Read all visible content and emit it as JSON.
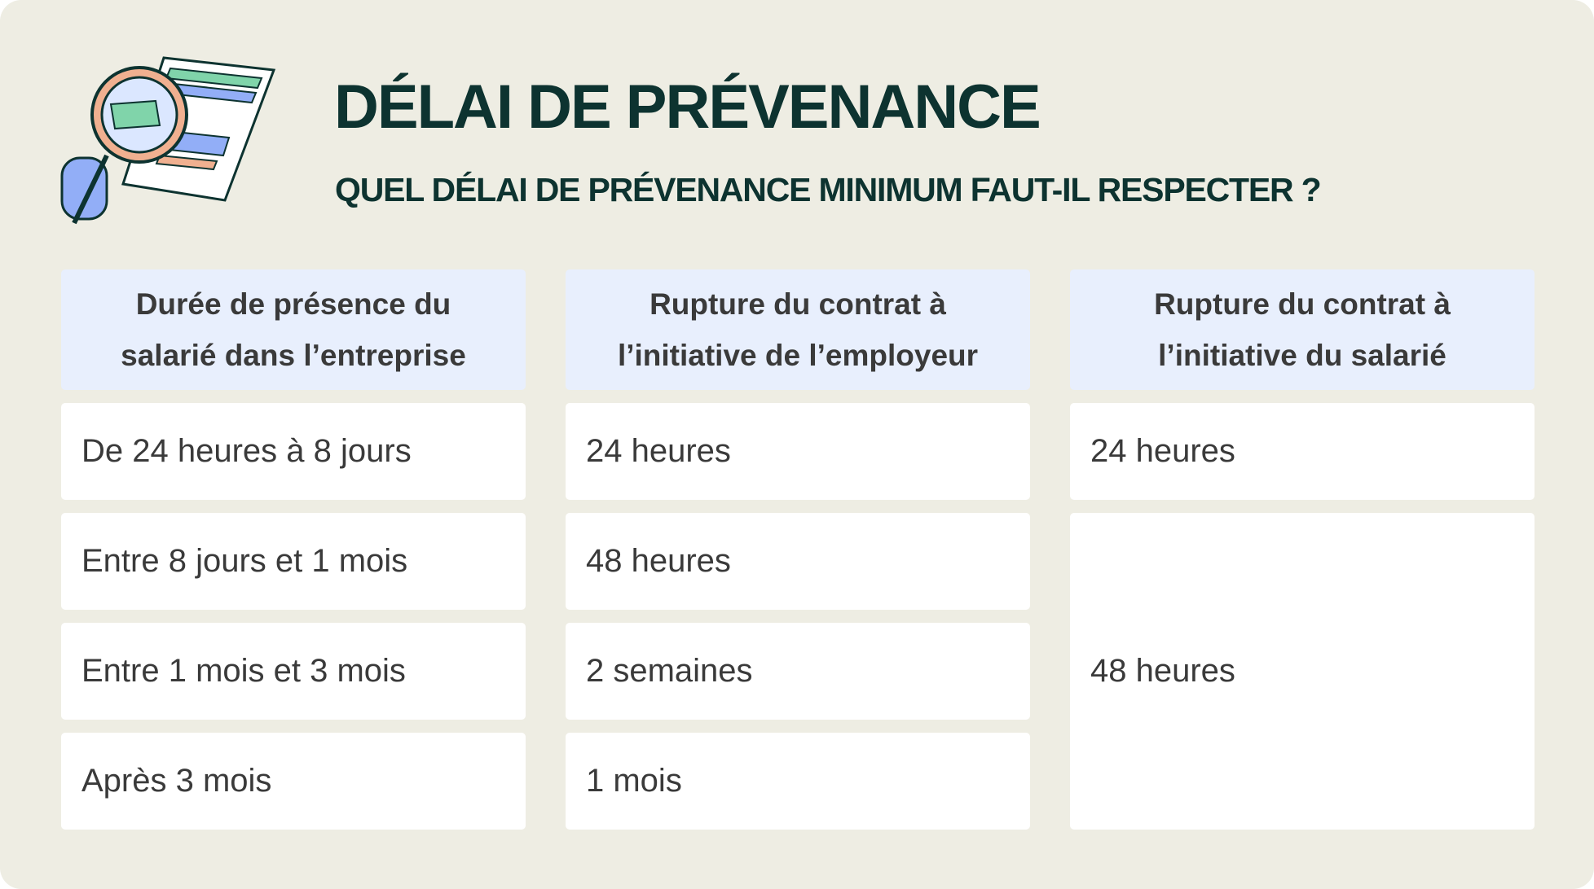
{
  "header": {
    "title": "DÉLAI DE PRÉVENANCE",
    "subtitle": "QUEL DÉLAI DE PRÉVENANCE MINIMUM FAUT-IL RESPECTER ?"
  },
  "table": {
    "columns": [
      "Durée de présence du salarié dans l’entreprise",
      "Rupture du contrat à l’initiative de l’employeur",
      "Rupture du contrat à l’initiative du salarié"
    ],
    "rows": [
      [
        "De 24 heures à 8 jours",
        "24 heures",
        "24 heures"
      ],
      [
        "Entre 8 jours et 1 mois",
        "48 heures",
        "48 heures"
      ],
      [
        "Entre 1 mois et 3 mois",
        "2 semaines"
      ],
      [
        "Après 3 mois",
        "1 mois"
      ]
    ]
  }
}
